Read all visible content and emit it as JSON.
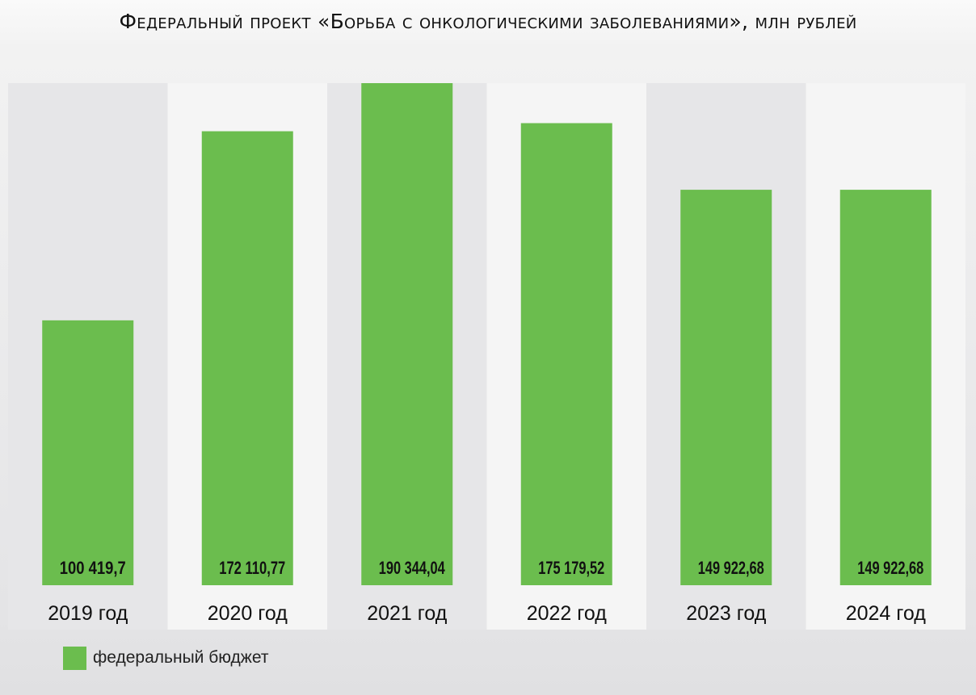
{
  "chart_data": {
    "type": "bar",
    "title": "Федеральный проект «Борьба с онкологическими заболеваниями», млн рублей",
    "categories": [
      "2019 год",
      "2020 год",
      "2021 год",
      "2022 год",
      "2023 год",
      "2024 год"
    ],
    "series": [
      {
        "name": "федеральный бюджет",
        "values": [
          100419.7,
          172110.77,
          190344.04,
          175179.52,
          149922.68,
          149922.68
        ],
        "labels": [
          "100 419,7",
          "172 110,77",
          "190 344,04",
          "175 179,52",
          "149 922,68",
          "149 922,68"
        ],
        "color": "#6bbd4e"
      }
    ],
    "xlabel": "",
    "ylabel": "",
    "ylim": [
      0,
      190344.04
    ],
    "grid": false,
    "legend": "bottom-left",
    "column_colors": [
      "#e6e6e8",
      "#f5f5f5"
    ]
  }
}
